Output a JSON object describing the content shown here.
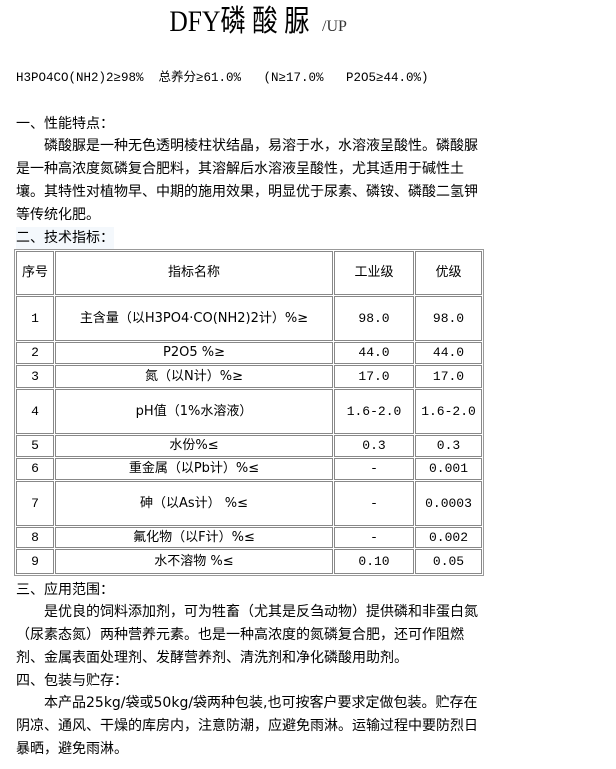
{
  "title": {
    "main": "DFY磷 酸 脲",
    "suffix": "/UP"
  },
  "formula": "H3PO4CO(NH2)2≥98%  总养分≥61.0%   (N≥17.0%   P2O5≥44.0%)",
  "sections": [
    {
      "heading": "一、性能特点：",
      "paragraph": "磷酸脲是一种无色透明棱柱状结晶，易溶于水，水溶液呈酸性。磷酸脲是一种高浓度氮磷复合肥料，其溶解后水溶液呈酸性，尤其适用于碱性土壤。其特性对植物早、中期的施用效果，明显优于尿素、磷铵、磷酸二氢钾等传统化肥。"
    },
    {
      "heading": "二、技术指标："
    },
    {
      "heading": "三、应用范围：",
      "paragraph": "是优良的饲料添加剂，可为牲畜（尤其是反刍动物）提供磷和非蛋白氮（尿素态氮）两种营养元素。也是一种高浓度的氮磷复合肥，还可作阻燃剂、金属表面处理剂、发酵营养剂、清洗剂和净化磷酸用助剂。"
    },
    {
      "heading": "四、包装与贮存：",
      "paragraph": "本产品25kg/袋或50kg/袋两种包装,也可按客户要求定做包装。贮存在阴凉、通风、干燥的库房内，注意防潮，应避免雨淋。运输过程中要防烈日暴晒，避免雨淋。"
    }
  ],
  "table": {
    "headers": [
      "序号",
      "指标名称",
      "工业级",
      "优级"
    ],
    "rows": [
      {
        "no": "1",
        "name": "主含量（以H3PO4·CO(NH2)2计）%≥",
        "industrial": "98.0",
        "premium": "98.0"
      },
      {
        "no": "2",
        "name": "P2O5  %≥",
        "industrial": "44.0",
        "premium": "44.0"
      },
      {
        "no": "3",
        "name": "氮（以N计）%≥",
        "industrial": "17.0",
        "premium": "17.0"
      },
      {
        "no": "4",
        "name": "pH值（1%水溶液）",
        "industrial": "1.6-2.0",
        "premium": "1.6-2.0"
      },
      {
        "no": "5",
        "name": "水份%≤",
        "industrial": "0.3",
        "premium": "0.3"
      },
      {
        "no": "6",
        "name": "重金属（以Pb计）%≤",
        "industrial": "-",
        "premium": "0.001"
      },
      {
        "no": "7",
        "name": "砷（以As计）  %≤",
        "industrial": "-",
        "premium": "0.0003"
      },
      {
        "no": "8",
        "name": "氟化物（以F计）%≤",
        "industrial": "-",
        "premium": "0.002"
      },
      {
        "no": "9",
        "name": "水不溶物  %≤",
        "industrial": "0.10",
        "premium": "0.05"
      }
    ]
  }
}
